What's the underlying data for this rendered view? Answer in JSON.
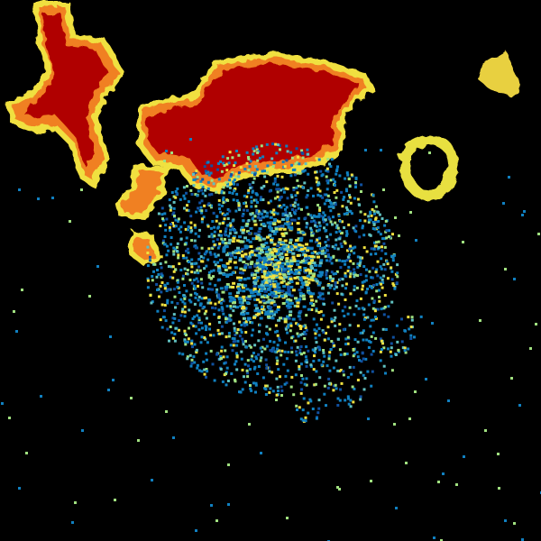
{
  "image": {
    "kind": "weather-radar-reflectivity",
    "background": "#000000",
    "palette": {
      "strong": "#b00000",
      "strong_edge": "#e03000",
      "moderate": "#f08020",
      "light": "#f0e040",
      "weak": "#a0e080",
      "clutter_high": "#60c0c0",
      "clutter": "#1080c0",
      "clutter_low": "#1050a0"
    }
  }
}
